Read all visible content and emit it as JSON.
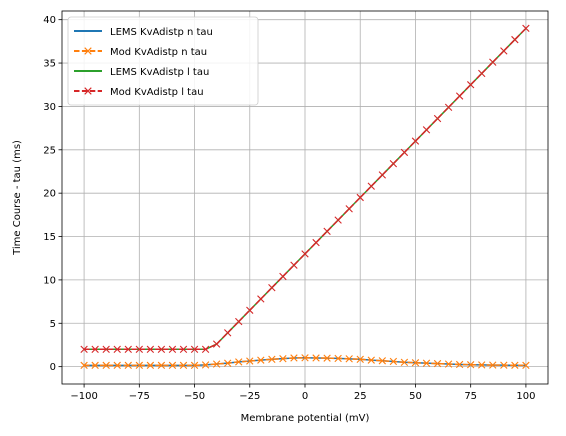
{
  "chart_data": {
    "type": "line",
    "xlabel": "Membrane potential (mV)",
    "ylabel": "Time Course - tau (ms)",
    "xlim": [
      -110,
      110
    ],
    "ylim": [
      -2,
      41
    ],
    "xticks": [
      -100,
      -75,
      -50,
      -25,
      0,
      25,
      50,
      75,
      100
    ],
    "yticks": [
      0,
      5,
      10,
      15,
      20,
      25,
      30,
      35,
      40
    ],
    "grid": true,
    "legend_position": "top-left",
    "series": [
      {
        "name": "LEMS KvAdistp n tau",
        "color": "#1f77b4",
        "style": "solid",
        "marker": "none",
        "x": [
          -100,
          -95,
          -90,
          -85,
          -80,
          -75,
          -70,
          -65,
          -60,
          -55,
          -50,
          -45,
          -40,
          -35,
          -30,
          -25,
          -20,
          -15,
          -10,
          -5,
          0,
          5,
          10,
          15,
          20,
          25,
          30,
          35,
          40,
          45,
          50,
          55,
          60,
          65,
          70,
          75,
          80,
          85,
          90,
          95,
          100
        ],
        "y": [
          0.15,
          0.15,
          0.15,
          0.15,
          0.15,
          0.15,
          0.15,
          0.15,
          0.15,
          0.15,
          0.15,
          0.2,
          0.3,
          0.4,
          0.55,
          0.65,
          0.75,
          0.85,
          0.92,
          1.0,
          1.02,
          1.0,
          0.98,
          0.95,
          0.9,
          0.85,
          0.75,
          0.68,
          0.6,
          0.5,
          0.45,
          0.4,
          0.35,
          0.3,
          0.25,
          0.22,
          0.2,
          0.18,
          0.17,
          0.16,
          0.15
        ]
      },
      {
        "name": "Mod KvAdistp n tau",
        "color": "#ff7f0e",
        "style": "dashed",
        "marker": "x",
        "x": [
          -100,
          -95,
          -90,
          -85,
          -80,
          -75,
          -70,
          -65,
          -60,
          -55,
          -50,
          -45,
          -40,
          -35,
          -30,
          -25,
          -20,
          -15,
          -10,
          -5,
          0,
          5,
          10,
          15,
          20,
          25,
          30,
          35,
          40,
          45,
          50,
          55,
          60,
          65,
          70,
          75,
          80,
          85,
          90,
          95,
          100
        ],
        "y": [
          0.15,
          0.15,
          0.15,
          0.15,
          0.15,
          0.15,
          0.15,
          0.15,
          0.15,
          0.15,
          0.15,
          0.2,
          0.3,
          0.4,
          0.55,
          0.65,
          0.75,
          0.85,
          0.92,
          1.0,
          1.02,
          1.0,
          0.98,
          0.95,
          0.9,
          0.85,
          0.75,
          0.68,
          0.6,
          0.5,
          0.45,
          0.4,
          0.35,
          0.3,
          0.25,
          0.22,
          0.2,
          0.18,
          0.17,
          0.16,
          0.15
        ]
      },
      {
        "name": "LEMS KvAdistp l tau",
        "color": "#2ca02c",
        "style": "solid",
        "marker": "none",
        "x": [
          -100,
          -95,
          -90,
          -85,
          -80,
          -75,
          -70,
          -65,
          -60,
          -55,
          -50,
          -45,
          -40,
          -35,
          -30,
          -25,
          -20,
          -15,
          -10,
          -5,
          0,
          5,
          10,
          15,
          20,
          25,
          30,
          35,
          40,
          45,
          50,
          55,
          60,
          65,
          70,
          75,
          80,
          85,
          90,
          95,
          100
        ],
        "y": [
          2,
          2,
          2,
          2,
          2,
          2,
          2,
          2,
          2,
          2,
          2,
          2,
          2.6,
          3.9,
          5.2,
          6.5,
          7.8,
          9.1,
          10.4,
          11.7,
          13.0,
          14.3,
          15.6,
          16.9,
          18.2,
          19.5,
          20.8,
          22.1,
          23.4,
          24.7,
          26.0,
          27.3,
          28.6,
          29.9,
          31.2,
          32.5,
          33.8,
          35.1,
          36.4,
          37.7,
          39.0
        ]
      },
      {
        "name": "Mod KvAdistp l tau",
        "color": "#d62728",
        "style": "dashed",
        "marker": "x",
        "x": [
          -100,
          -95,
          -90,
          -85,
          -80,
          -75,
          -70,
          -65,
          -60,
          -55,
          -50,
          -45,
          -40,
          -35,
          -30,
          -25,
          -20,
          -15,
          -10,
          -5,
          0,
          5,
          10,
          15,
          20,
          25,
          30,
          35,
          40,
          45,
          50,
          55,
          60,
          65,
          70,
          75,
          80,
          85,
          90,
          95,
          100
        ],
        "y": [
          2,
          2,
          2,
          2,
          2,
          2,
          2,
          2,
          2,
          2,
          2,
          2,
          2.6,
          3.9,
          5.2,
          6.5,
          7.8,
          9.1,
          10.4,
          11.7,
          13.0,
          14.3,
          15.6,
          16.9,
          18.2,
          19.5,
          20.8,
          22.1,
          23.4,
          24.7,
          26.0,
          27.3,
          28.6,
          29.9,
          31.2,
          32.5,
          33.8,
          35.1,
          36.4,
          37.7,
          39.0
        ]
      }
    ]
  }
}
